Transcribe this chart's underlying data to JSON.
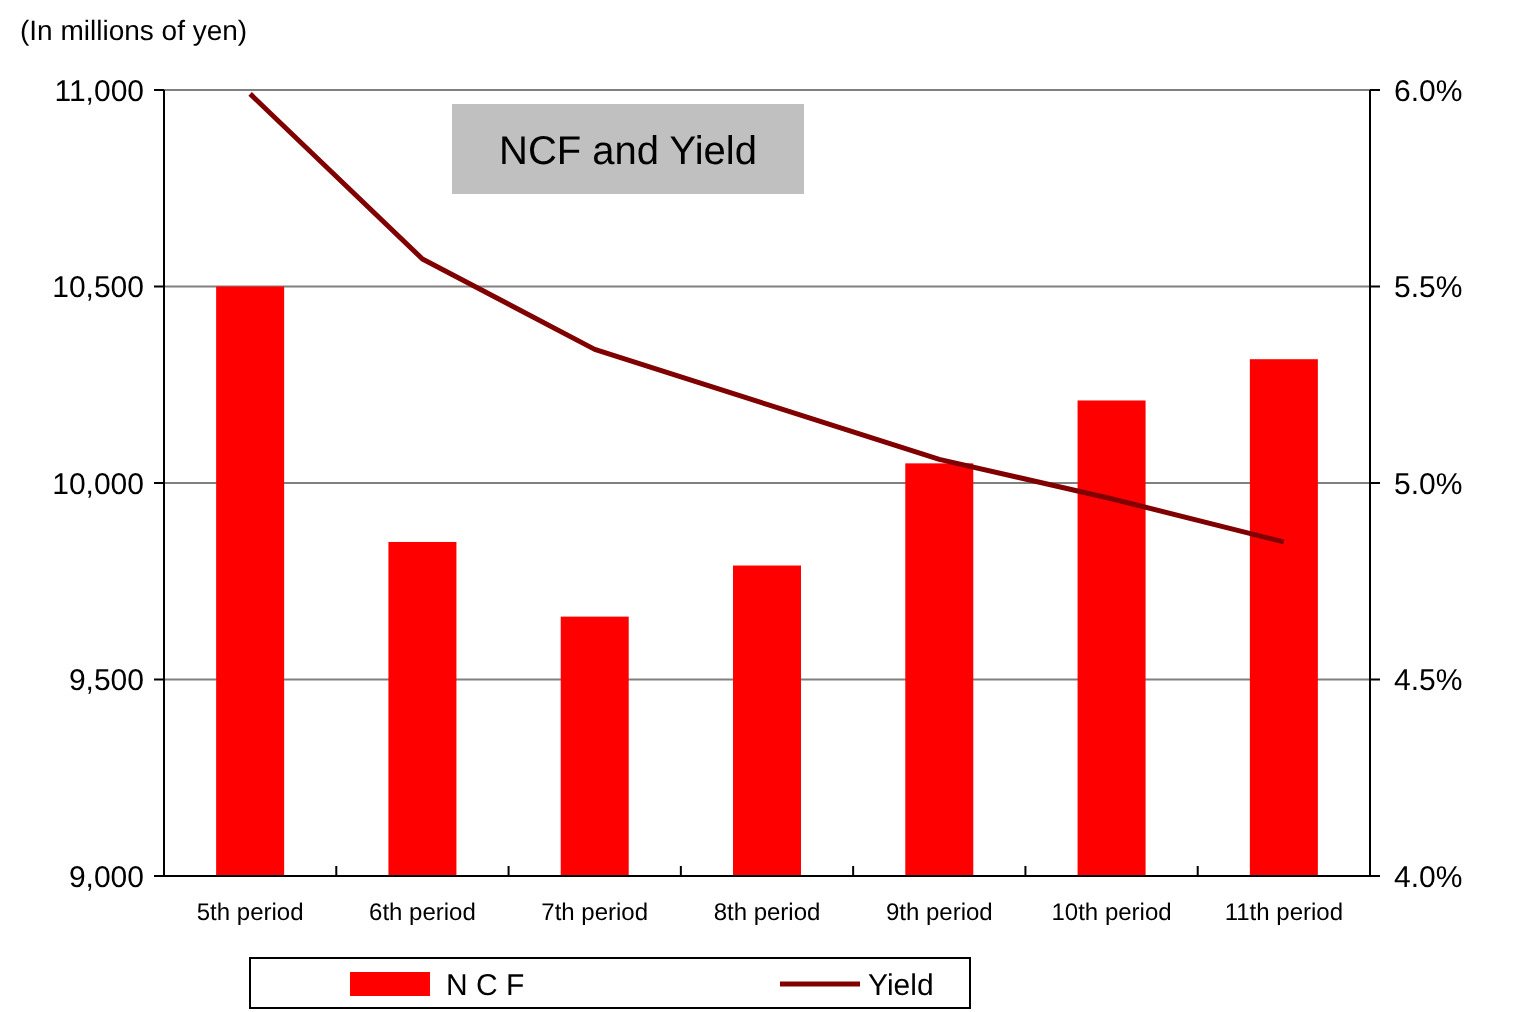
{
  "chart_data": {
    "type": "bar",
    "title": "NCF and Yield",
    "ylabel": "(In millions of yen)",
    "categories": [
      "5th period",
      "6th period",
      "7th period",
      "8th period",
      "9th period",
      "10th period",
      "11th period"
    ],
    "series": [
      {
        "name": "N C F",
        "color": "#ff0000",
        "values": [
          10500,
          9850,
          9660,
          9790,
          10050,
          10210,
          10315
        ]
      },
      {
        "name": "Yield",
        "type": "line",
        "axis": "y2",
        "color": "#800000",
        "values": [
          5.99,
          5.57,
          5.34,
          5.2,
          5.06,
          4.96,
          4.85
        ]
      }
    ],
    "ylim": [
      9000,
      11000
    ],
    "yticks": [
      {
        "value": 9000,
        "label": "9,000"
      },
      {
        "value": 9500,
        "label": "9,500"
      },
      {
        "value": 10000,
        "label": "10,000"
      },
      {
        "value": 10500,
        "label": "10,500"
      },
      {
        "value": 11000,
        "label": "11,000"
      }
    ],
    "y2lim": [
      4.0,
      6.0
    ],
    "y2ticks": [
      {
        "value": 4.0,
        "label": "4.0%"
      },
      {
        "value": 4.5,
        "label": "4.5%"
      },
      {
        "value": 5.0,
        "label": "5.0%"
      },
      {
        "value": 5.5,
        "label": "5.5%"
      },
      {
        "value": 6.0,
        "label": "6.0%"
      }
    ],
    "grid": "y",
    "legend": "bottom",
    "marker": "none",
    "line_style": "solid"
  }
}
